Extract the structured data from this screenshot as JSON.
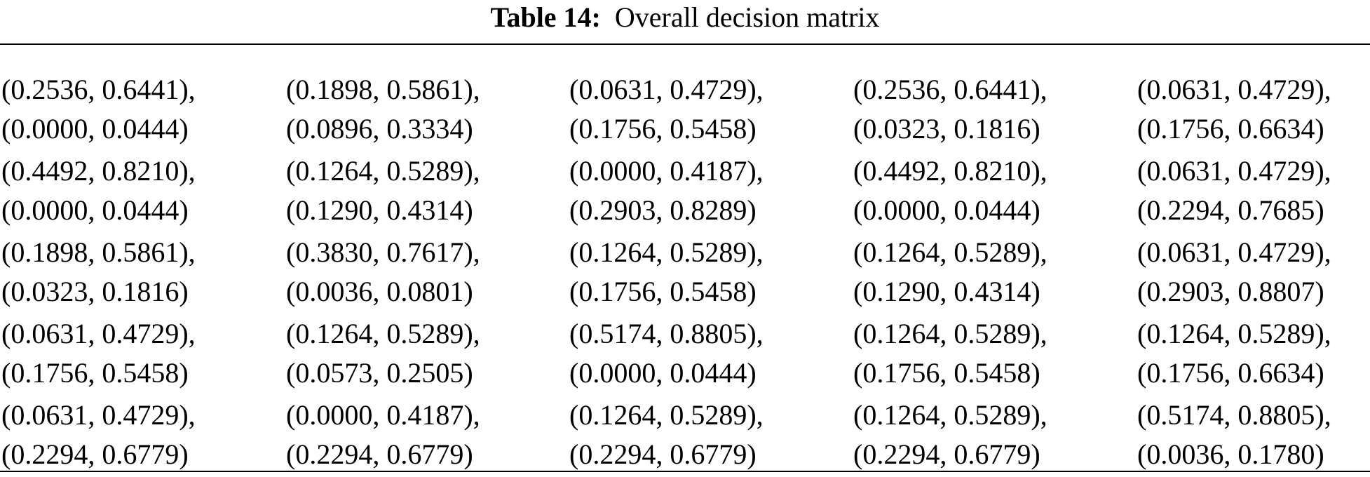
{
  "caption": {
    "label": "Table 14:",
    "title": "Overall decision matrix"
  },
  "rows": [
    [
      [
        "(0.2536, 0.6441),",
        "(0.0000, 0.0444)"
      ],
      [
        "(0.1898, 0.5861),",
        "(0.0896, 0.3334)"
      ],
      [
        "(0.0631, 0.4729),",
        "(0.1756, 0.5458)"
      ],
      [
        "(0.2536, 0.6441),",
        "(0.0323, 0.1816)"
      ],
      [
        "(0.0631, 0.4729),",
        "(0.1756, 0.6634)"
      ]
    ],
    [
      [
        "(0.4492, 0.8210),",
        "(0.0000, 0.0444)"
      ],
      [
        "(0.1264, 0.5289),",
        "(0.1290, 0.4314)"
      ],
      [
        "(0.0000, 0.4187),",
        "(0.2903, 0.8289)"
      ],
      [
        "(0.4492, 0.8210),",
        "(0.0000, 0.0444)"
      ],
      [
        "(0.0631, 0.4729),",
        "(0.2294, 0.7685)"
      ]
    ],
    [
      [
        "(0.1898, 0.5861),",
        "(0.0323, 0.1816)"
      ],
      [
        "(0.3830, 0.7617),",
        "(0.0036, 0.0801)"
      ],
      [
        "(0.1264, 0.5289),",
        "(0.1756, 0.5458)"
      ],
      [
        "(0.1264, 0.5289),",
        "(0.1290, 0.4314)"
      ],
      [
        "(0.0631, 0.4729),",
        "(0.2903, 0.8807)"
      ]
    ],
    [
      [
        "(0.0631, 0.4729),",
        "(0.1756, 0.5458)"
      ],
      [
        "(0.1264, 0.5289),",
        "(0.0573, 0.2505)"
      ],
      [
        "(0.5174, 0.8805),",
        "(0.0000, 0.0444)"
      ],
      [
        "(0.1264, 0.5289),",
        "(0.1756, 0.5458)"
      ],
      [
        "(0.1264, 0.5289),",
        "(0.1756, 0.6634)"
      ]
    ],
    [
      [
        "(0.0631, 0.4729),",
        "(0.2294, 0.6779)"
      ],
      [
        "(0.0000, 0.4187),",
        "(0.2294, 0.6779)"
      ],
      [
        "(0.1264, 0.5289),",
        "(0.2294, 0.6779)"
      ],
      [
        "(0.1264, 0.5289),",
        "(0.2294, 0.6779)"
      ],
      [
        "(0.5174, 0.8805),",
        "(0.0036, 0.1780)"
      ]
    ]
  ]
}
